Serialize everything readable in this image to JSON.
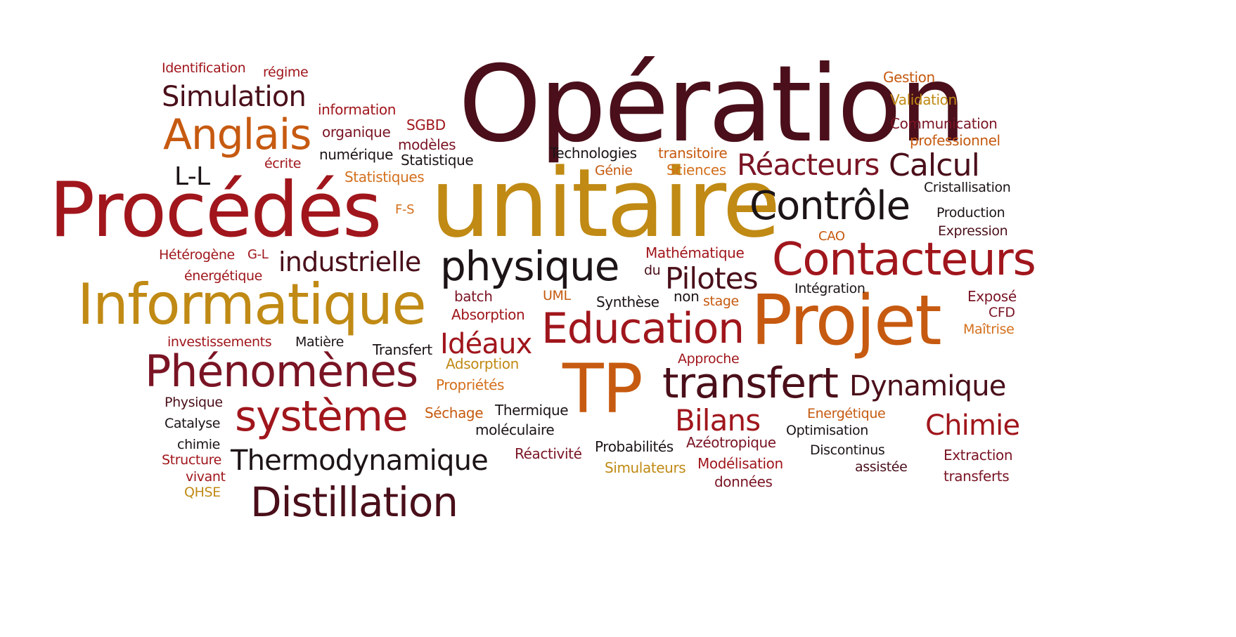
{
  "words": {
    "operation": "Opération",
    "unitaire": "unitaire",
    "procedes": "Procédés",
    "informatique": "Informatique",
    "projet": "Projet",
    "tp": "TP",
    "contacteurs": "Contacteurs",
    "education": "Education",
    "transfert_big": "transfert",
    "controle": "Contrôle",
    "phenomenes": "Phénomènes",
    "systeme": "système",
    "physique": "physique",
    "anglais": "Anglais",
    "distillation": "Distillation",
    "thermodynamique": "Thermodynamique",
    "reacteurs": "Réacteurs",
    "calcul": "Calcul",
    "dynamique": "Dynamique",
    "chimie_big": "Chimie",
    "bilans": "Bilans",
    "pilotes": "Pilotes",
    "ideaux": "Idéaux",
    "industrielle": "industrielle",
    "simulation": "Simulation",
    "ll": "L-L",
    "identification": "Identification",
    "regime": "régime",
    "information": "information",
    "organique": "organique",
    "numerique": "numérique",
    "ecrite": "écrite",
    "sgbd": "SGBD",
    "modeles": "modèles",
    "statistique": "Statistique",
    "statistiques": "Statistiques",
    "technologies": "Technologies",
    "genie": "Génie",
    "transitoire": "transitoire",
    "sciences": "Sciences",
    "gestion": "Gestion",
    "validation": "Validation",
    "communication": "Communication",
    "professionnel": "professionnel",
    "cristallisation": "Cristallisation",
    "production": "Production",
    "expression": "Expression",
    "fs": "F-S",
    "cao": "CAO",
    "heterogene": "Hétérogène",
    "gl": "G-L",
    "energetique_low": "énergétique",
    "mathematique": "Mathématique",
    "du": "du",
    "batch": "batch",
    "uml": "UML",
    "synthese": "Synthèse",
    "non": "non",
    "stage": "stage",
    "integration": "Intégration",
    "expose": "Exposé",
    "cfd": "CFD",
    "maitrise": "Maîtrise",
    "absorption_red": "Absorption",
    "investissements": "investissements",
    "matiere": "Matière",
    "transfert_small": "Transfert",
    "adsorption": "Adsorption",
    "approche": "Approche",
    "proprietes": "Propriétés",
    "physique_small": "Physique",
    "catalyse": "Catalyse",
    "sechage": "Séchage",
    "thermique": "Thermique",
    "moleculaire": "moléculaire",
    "energetique_cap": "Energétique",
    "optimisation": "Optimisation",
    "chimie_small": "chimie",
    "structure": "Structure",
    "vivant": "vivant",
    "qhse": "QHSE",
    "reactivite": "Réactivité",
    "probabilites": "Probabilités",
    "azeotropique": "Azéotropique",
    "discontinus": "Discontinus",
    "extraction": "Extraction",
    "simulateurs": "Simulateurs",
    "modelisation": "Modélisation",
    "assistee": "assistée",
    "donnees": "données",
    "transferts": "transferts"
  }
}
